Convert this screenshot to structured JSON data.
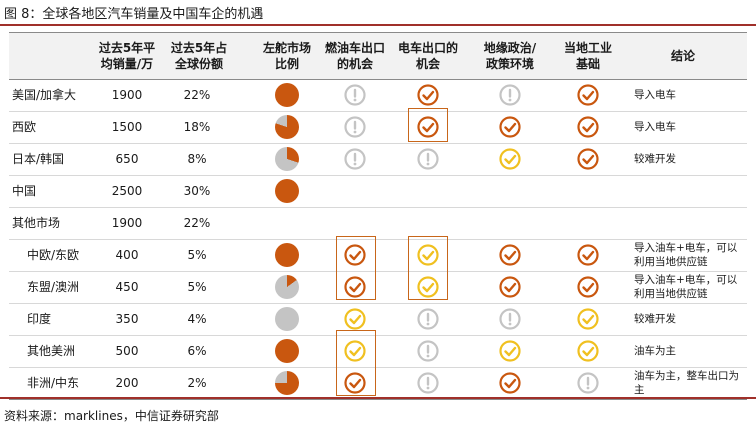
{
  "title": "图 8：全球各地区汽车销量及中国车企的机遇",
  "source": "资料来源：marklines，中信证券研究部",
  "colors": {
    "orange": "#c9570f",
    "gray": "#c4c4c4",
    "yellow": "#f0c020",
    "rule": "#a0302a"
  },
  "headers": [
    "过去5年平\n均销量/万",
    "过去5年占\n全球份额",
    "左舵市场\n比例",
    "燃油车出口\n的机会",
    "电车出口的\n机会",
    "地缘政治/\n政策环境",
    "当地工业\n基础",
    "结论"
  ],
  "rows": [
    {
      "name": "美国/加拿大",
      "sales": "1900",
      "share": "22%",
      "lhd": 1.0,
      "ice": "gray-exclaim",
      "ev": "orange-check",
      "geo": "gray-exclaim",
      "ind": "orange-check",
      "conclusion": "导入电车"
    },
    {
      "name": "西欧",
      "sales": "1500",
      "share": "18%",
      "lhd": 0.8,
      "ice": "gray-exclaim",
      "ev": "orange-check",
      "geo": "orange-check",
      "ind": "orange-check",
      "conclusion": "导入电车"
    },
    {
      "name": "日本/韩国",
      "sales": "650",
      "share": "8%",
      "lhd": 0.3,
      "ice": "gray-exclaim",
      "ev": "gray-exclaim",
      "geo": "yellow-check",
      "ind": "orange-check",
      "conclusion": "较难开发"
    },
    {
      "name": "中国",
      "sales": "2500",
      "share": "30%",
      "lhd": 1.0,
      "ice": "",
      "ev": "",
      "geo": "",
      "ind": "",
      "conclusion": ""
    },
    {
      "name": "其他市场",
      "sales": "1900",
      "share": "22%",
      "lhd": null,
      "ice": "",
      "ev": "",
      "geo": "",
      "ind": "",
      "conclusion": ""
    },
    {
      "name": "中欧/东欧",
      "sales": "400",
      "share": "5%",
      "lhd": 1.0,
      "ice": "orange-check",
      "ev": "yellow-check",
      "geo": "orange-check",
      "ind": "orange-check",
      "conclusion": "导入油车+电车，可以利用当地供应链"
    },
    {
      "name": "东盟/澳洲",
      "sales": "450",
      "share": "5%",
      "lhd": 0.15,
      "ice": "orange-check",
      "ev": "yellow-check",
      "geo": "orange-check",
      "ind": "orange-check",
      "conclusion": "导入油车+电车，可以利用当地供应链"
    },
    {
      "name": "印度",
      "sales": "350",
      "share": "4%",
      "lhd": 0.0,
      "ice": "yellow-check",
      "ev": "gray-exclaim",
      "geo": "gray-exclaim",
      "ind": "yellow-check",
      "conclusion": "较难开发"
    },
    {
      "name": "其他美洲",
      "sales": "500",
      "share": "6%",
      "lhd": 1.0,
      "ice": "yellow-check",
      "ev": "gray-exclaim",
      "geo": "yellow-check",
      "ind": "yellow-check",
      "conclusion": "油车为主"
    },
    {
      "name": "非洲/中东",
      "sales": "200",
      "share": "2%",
      "lhd": 0.75,
      "ice": "orange-check",
      "ev": "gray-exclaim",
      "geo": "orange-check",
      "ind": "gray-exclaim",
      "conclusion": "油车为主，整车出口为主"
    }
  ]
}
